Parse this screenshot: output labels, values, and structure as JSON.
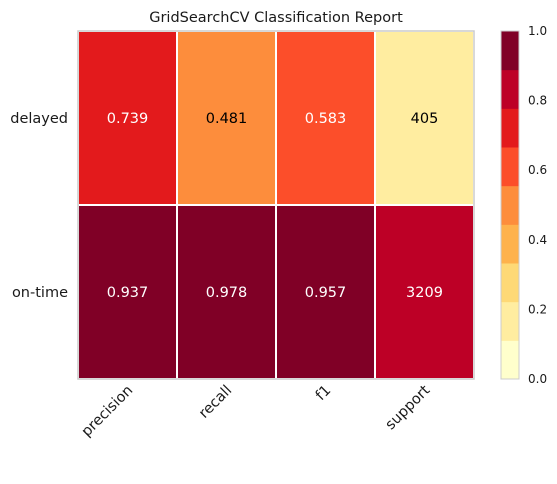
{
  "chart_data": {
    "type": "heatmap",
    "title": "GridSearchCV Classification Report",
    "rows": [
      "delayed",
      "on-time"
    ],
    "columns": [
      "precision",
      "recall",
      "f1",
      "support"
    ],
    "values": [
      [
        0.739,
        0.481,
        0.583,
        405
      ],
      [
        0.937,
        0.978,
        0.957,
        3209
      ]
    ],
    "cell_labels": [
      [
        "0.739",
        "0.481",
        "0.583",
        "405"
      ],
      [
        "0.937",
        "0.978",
        "0.957",
        "3209"
      ]
    ],
    "cell_colors": [
      [
        "#e31a1c",
        "#fd8d3c",
        "#fc4e2a",
        "#ffeda0"
      ],
      [
        "#800026",
        "#800026",
        "#800026",
        "#bd0026"
      ]
    ],
    "cell_text_colors": [
      [
        "#ffffff",
        "#000000",
        "#ffffff",
        "#000000"
      ],
      [
        "#ffffff",
        "#ffffff",
        "#ffffff",
        "#ffffff"
      ]
    ],
    "colorbar": {
      "range": [
        0.0,
        1.0
      ],
      "ticks": [
        "0.0",
        "0.2",
        "0.4",
        "0.6",
        "0.8",
        "1.0"
      ],
      "colors": [
        "#ffffcc",
        "#ffeda0",
        "#fed976",
        "#feb24c",
        "#fd8d3c",
        "#fc4e2a",
        "#e31a1c",
        "#bd0026",
        "#800026"
      ]
    },
    "grid": false
  }
}
